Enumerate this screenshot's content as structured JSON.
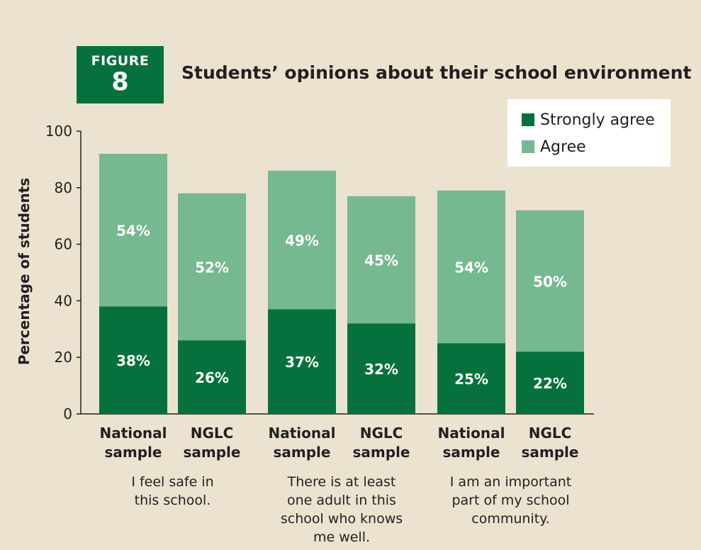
{
  "figure": {
    "label": "FIGURE",
    "number": "8"
  },
  "colors": {
    "strongly_agree": "#06713c",
    "agree": "#76b890",
    "background": "#ebe3d0",
    "badge": "#06713c"
  },
  "chart_data": {
    "type": "bar",
    "stacked": true,
    "title": "Students’ opinions about their school environment",
    "ylabel": "Percentage of students",
    "xlabel": "",
    "ylim": [
      0,
      100
    ],
    "yticks": [
      0,
      20,
      40,
      60,
      80,
      100
    ],
    "grid": false,
    "legend_position": "top-right",
    "groups": [
      {
        "caption": "I feel safe in this school.",
        "caption_lines": [
          "I feel safe in",
          "this school."
        ]
      },
      {
        "caption": "There is at least one adult in this school who knows me well.",
        "caption_lines": [
          "There is at least",
          "one adult in this",
          "school who knows",
          "me well."
        ]
      },
      {
        "caption": "I am an important part of my school community.",
        "caption_lines": [
          "I am an important",
          "part of my school",
          "community."
        ]
      }
    ],
    "categories": [
      "National sample",
      "NGLC sample",
      "National sample",
      "NGLC sample",
      "National sample",
      "NGLC sample"
    ],
    "category_lines": [
      [
        "National",
        "sample"
      ],
      [
        "NGLC",
        "sample"
      ],
      [
        "National",
        "sample"
      ],
      [
        "NGLC",
        "sample"
      ],
      [
        "National",
        "sample"
      ],
      [
        "NGLC",
        "sample"
      ]
    ],
    "series": [
      {
        "name": "Strongly agree",
        "values": [
          38,
          26,
          37,
          32,
          25,
          22
        ],
        "labels": [
          "38%",
          "26%",
          "37%",
          "32%",
          "25%",
          "22%"
        ]
      },
      {
        "name": "Agree",
        "values": [
          54,
          52,
          49,
          45,
          54,
          50
        ],
        "labels": [
          "54%",
          "52%",
          "49%",
          "45%",
          "54%",
          "50%"
        ]
      }
    ]
  }
}
